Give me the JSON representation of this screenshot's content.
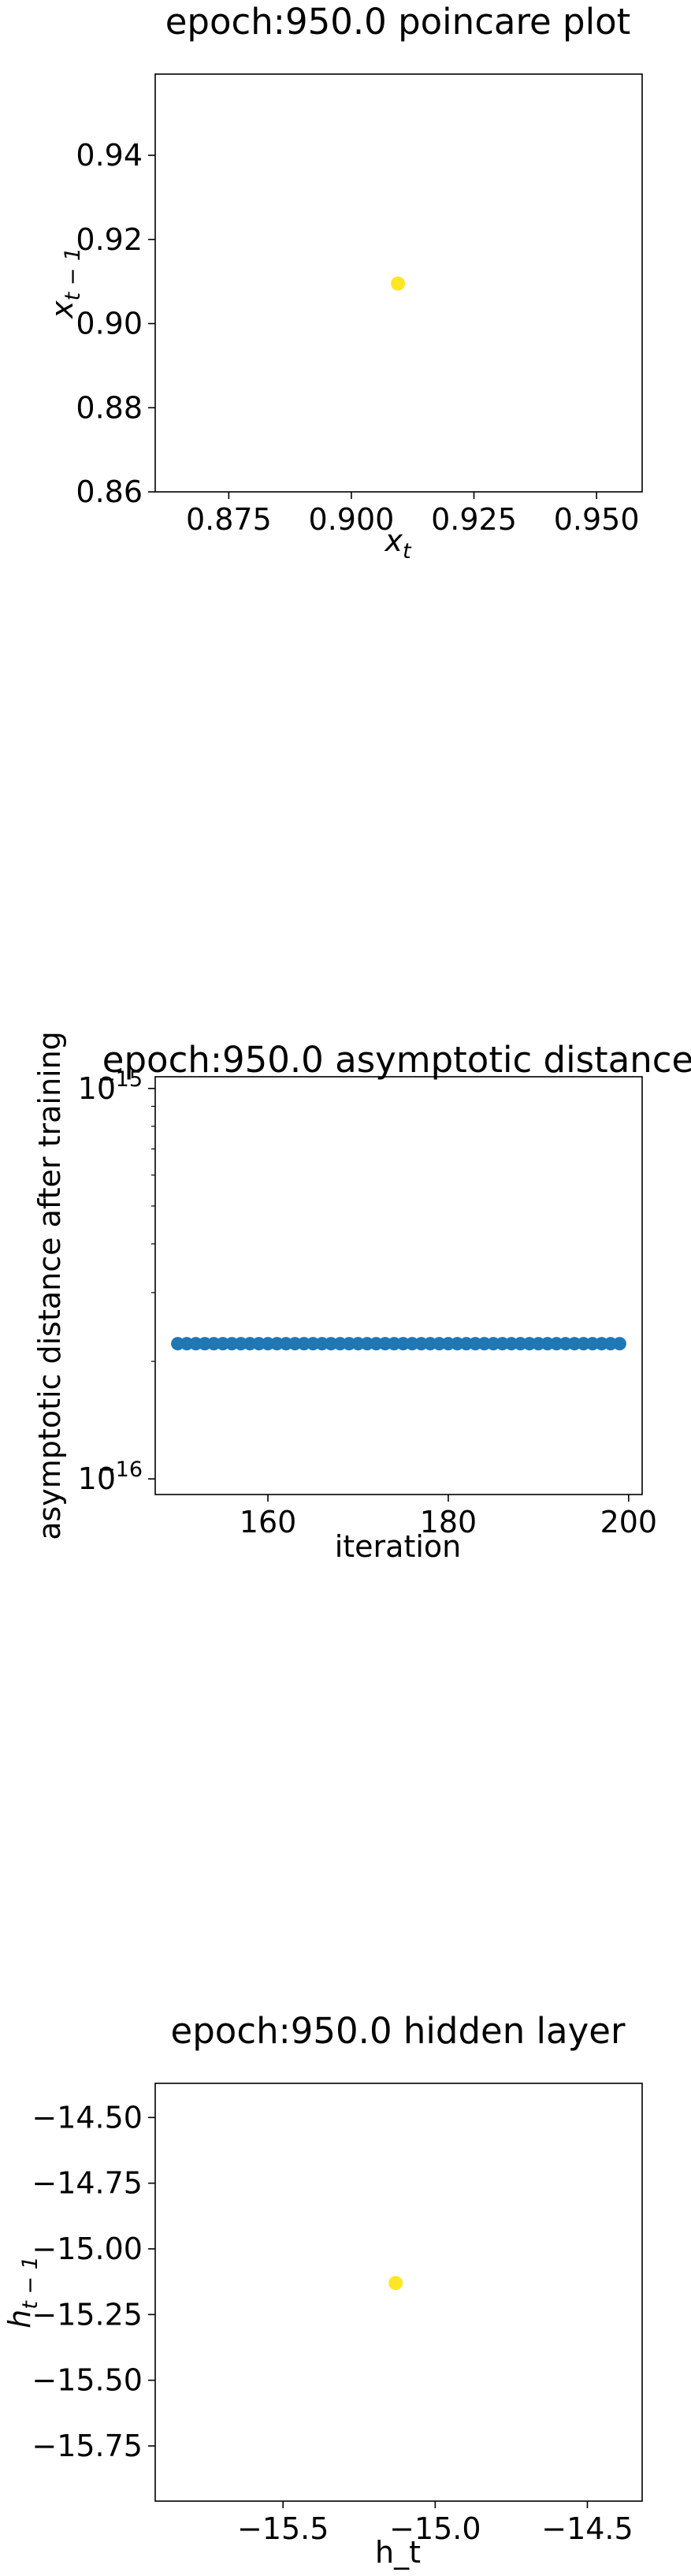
{
  "chart_data": [
    {
      "type": "scatter",
      "title": "epoch:950.0 poincare plot",
      "xlabel_base": "x",
      "xlabel_sub": "t",
      "ylabel_base": "x",
      "ylabel_sub": "t − 1",
      "xlim": [
        0.86,
        0.9593
      ],
      "ylim": [
        0.86,
        0.9593
      ],
      "xticks": [
        0.875,
        0.9,
        0.925,
        0.95
      ],
      "xtick_labels": [
        "0.875",
        "0.900",
        "0.925",
        "0.950"
      ],
      "yticks": [
        0.86,
        0.88,
        0.9,
        0.92,
        0.94
      ],
      "ytick_labels": [
        "0.86",
        "0.88",
        "0.90",
        "0.92",
        "0.94"
      ],
      "point_color": "#fde725",
      "points": [
        {
          "x": 0.9095,
          "y": 0.9095
        }
      ]
    },
    {
      "type": "scatter",
      "title": "epoch:950.0 asymptotic distance",
      "xlabel": "iteration",
      "ylabel": "asymptotic distance after training",
      "yscale": "log",
      "xlim": [
        147.5,
        201.5
      ],
      "ylim_log10": [
        -16.04,
        -14.97
      ],
      "xticks": [
        160,
        180,
        200
      ],
      "xtick_labels": [
        "160",
        "180",
        "200"
      ],
      "yticks_log10": [
        -16,
        -15
      ],
      "ytick_label_base": "10",
      "ytick_label_exps": [
        "−16",
        "−15"
      ],
      "point_color": "#1f77b4",
      "x": [
        150,
        151,
        152,
        153,
        154,
        155,
        156,
        157,
        158,
        159,
        160,
        161,
        162,
        163,
        164,
        165,
        166,
        167,
        168,
        169,
        170,
        171,
        172,
        173,
        174,
        175,
        176,
        177,
        178,
        179,
        180,
        181,
        182,
        183,
        184,
        185,
        186,
        187,
        188,
        189,
        190,
        191,
        192,
        193,
        194,
        195,
        196,
        197,
        198,
        199
      ],
      "y_value": 2.22e-16
    },
    {
      "type": "scatter",
      "title": "epoch:950.0 hidden layer",
      "xlabel": "h_t",
      "ylabel_base": "h",
      "ylabel_sub": "t − 1",
      "xlim": [
        -15.92,
        -14.32
      ],
      "ylim": [
        -15.96,
        -14.37
      ],
      "xticks": [
        -15.5,
        -15.0,
        -14.5
      ],
      "xtick_labels": [
        "−15.5",
        "−15.0",
        "−14.5"
      ],
      "yticks": [
        -15.75,
        -15.5,
        -15.25,
        -15.0,
        -14.75,
        -14.5
      ],
      "ytick_labels": [
        "−15.75",
        "−15.50",
        "−15.25",
        "−15.00",
        "−14.75",
        "−14.50"
      ],
      "point_color": "#fde725",
      "points": [
        {
          "x": -15.13,
          "y": -15.13
        }
      ]
    }
  ]
}
